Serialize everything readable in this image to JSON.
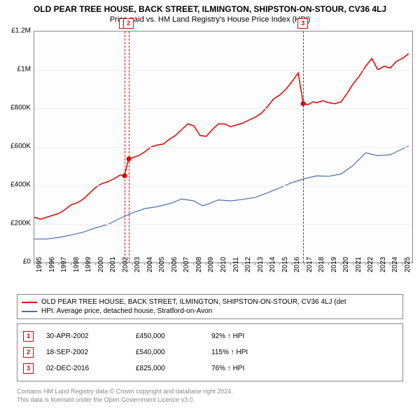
{
  "title": "OLD PEAR TREE HOUSE, BACK STREET, ILMINGTON, SHIPSTON-ON-STOUR, CV36 4LJ",
  "subtitle": "Price paid vs. HM Land Registry's House Price Index (HPI)",
  "chart": {
    "type": "line",
    "background_color": "#fdfdfd",
    "border_color": "#888888",
    "grid_color": "#eeeeee",
    "x": {
      "min": 1995,
      "max": 2025.8,
      "ticks": [
        1995,
        1996,
        1997,
        1998,
        1999,
        2000,
        2001,
        2002,
        2003,
        2004,
        2005,
        2006,
        2007,
        2008,
        2009,
        2010,
        2011,
        2012,
        2013,
        2014,
        2015,
        2016,
        2017,
        2018,
        2019,
        2020,
        2021,
        2022,
        2023,
        2024,
        2025
      ],
      "tick_fontsize": 10,
      "tick_rotation": -90
    },
    "y": {
      "min": 0,
      "max": 1200000,
      "ticks": [
        0,
        200000,
        400000,
        600000,
        800000,
        1000000,
        1200000
      ],
      "tick_labels": [
        "£0",
        "£200K",
        "£400K",
        "£600K",
        "£800K",
        "£1M",
        "£1.2M"
      ],
      "tick_fontsize": 10
    },
    "series": [
      {
        "name": "OLD PEAR TREE HOUSE, BACK STREET, ILMINGTON, SHIPSTON-ON-STOUR, CV36 4LJ (det",
        "color": "#e00000",
        "width": 1.5,
        "points": [
          [
            1995,
            235000
          ],
          [
            1995.5,
            225000
          ],
          [
            1996,
            235000
          ],
          [
            1996.5,
            245000
          ],
          [
            1997,
            255000
          ],
          [
            1997.5,
            275000
          ],
          [
            1998,
            300000
          ],
          [
            1998.5,
            310000
          ],
          [
            1999,
            330000
          ],
          [
            1999.5,
            360000
          ],
          [
            2000,
            390000
          ],
          [
            2000.5,
            410000
          ],
          [
            2001,
            420000
          ],
          [
            2001.5,
            435000
          ],
          [
            2002,
            455000
          ],
          [
            2002.33,
            450000
          ],
          [
            2002.7,
            540000
          ],
          [
            2003,
            545000
          ],
          [
            2003.5,
            555000
          ],
          [
            2004,
            575000
          ],
          [
            2004.5,
            600000
          ],
          [
            2005,
            610000
          ],
          [
            2005.5,
            615000
          ],
          [
            2006,
            640000
          ],
          [
            2006.5,
            660000
          ],
          [
            2007,
            690000
          ],
          [
            2007.5,
            720000
          ],
          [
            2008,
            710000
          ],
          [
            2008.5,
            660000
          ],
          [
            2009,
            655000
          ],
          [
            2009.5,
            690000
          ],
          [
            2010,
            720000
          ],
          [
            2010.5,
            720000
          ],
          [
            2011,
            705000
          ],
          [
            2011.5,
            715000
          ],
          [
            2012,
            725000
          ],
          [
            2012.5,
            740000
          ],
          [
            2013,
            755000
          ],
          [
            2013.5,
            775000
          ],
          [
            2014,
            810000
          ],
          [
            2014.5,
            850000
          ],
          [
            2015,
            870000
          ],
          [
            2015.5,
            900000
          ],
          [
            2016,
            940000
          ],
          [
            2016.5,
            985000
          ],
          [
            2016.92,
            825000
          ],
          [
            2017.3,
            820000
          ],
          [
            2017.7,
            835000
          ],
          [
            2018,
            830000
          ],
          [
            2018.5,
            840000
          ],
          [
            2019,
            830000
          ],
          [
            2019.5,
            825000
          ],
          [
            2020,
            835000
          ],
          [
            2020.5,
            880000
          ],
          [
            2021,
            930000
          ],
          [
            2021.5,
            970000
          ],
          [
            2022,
            1020000
          ],
          [
            2022.5,
            1060000
          ],
          [
            2023,
            1000000
          ],
          [
            2023.5,
            1020000
          ],
          [
            2024,
            1010000
          ],
          [
            2024.5,
            1045000
          ],
          [
            2025,
            1060000
          ],
          [
            2025.5,
            1085000
          ]
        ]
      },
      {
        "name": "HPI: Average price, detached house, Stratford-on-Avon",
        "color": "#4a6fb0",
        "width": 1.2,
        "points": [
          [
            1995,
            122000
          ],
          [
            1996,
            122000
          ],
          [
            1997,
            130000
          ],
          [
            1998,
            143000
          ],
          [
            1999,
            158000
          ],
          [
            2000,
            180000
          ],
          [
            2001,
            198000
          ],
          [
            2002,
            230000
          ],
          [
            2003,
            258000
          ],
          [
            2004,
            280000
          ],
          [
            2005,
            290000
          ],
          [
            2006,
            305000
          ],
          [
            2007,
            330000
          ],
          [
            2008,
            320000
          ],
          [
            2008.7,
            295000
          ],
          [
            2009,
            300000
          ],
          [
            2010,
            325000
          ],
          [
            2011,
            320000
          ],
          [
            2012,
            328000
          ],
          [
            2013,
            338000
          ],
          [
            2014,
            362000
          ],
          [
            2015,
            388000
          ],
          [
            2016,
            415000
          ],
          [
            2017,
            435000
          ],
          [
            2018,
            450000
          ],
          [
            2019,
            448000
          ],
          [
            2020,
            460000
          ],
          [
            2021,
            505000
          ],
          [
            2022,
            570000
          ],
          [
            2023,
            555000
          ],
          [
            2024,
            560000
          ],
          [
            2025,
            590000
          ],
          [
            2025.5,
            605000
          ]
        ]
      }
    ],
    "markers": [
      {
        "n": "1",
        "x": 2002.33,
        "y": 450000
      },
      {
        "n": "2",
        "x": 2002.71,
        "y": 540000
      },
      {
        "n": "3",
        "x": 2016.92,
        "y": 825000
      }
    ]
  },
  "legend": {
    "items": [
      {
        "color": "#e00000",
        "label": "OLD PEAR TREE HOUSE, BACK STREET, ILMINGTON, SHIPSTON-ON-STOUR, CV36 4LJ (det"
      },
      {
        "color": "#4a6fb0",
        "label": "HPI: Average price, detached house, Stratford-on-Avon"
      }
    ]
  },
  "events": [
    {
      "n": "1",
      "date": "30-APR-2002",
      "price": "£450,000",
      "delta": "92% ↑ HPI"
    },
    {
      "n": "2",
      "date": "18-SEP-2002",
      "price": "£540,000",
      "delta": "115% ↑ HPI"
    },
    {
      "n": "3",
      "date": "02-DEC-2016",
      "price": "£825,000",
      "delta": "76% ↑ HPI"
    }
  ],
  "footer_line1": "Contains HM Land Registry data © Crown copyright and database right 2024.",
  "footer_line2": "This data is licensed under the Open Government Licence v3.0."
}
